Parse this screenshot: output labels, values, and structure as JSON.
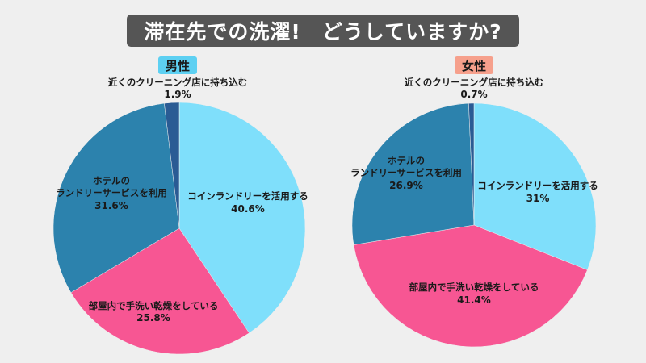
{
  "title": "滞在先での洗濯!　どうしていますか?",
  "colors": {
    "coin": "#7fdffb",
    "home": "#f75693",
    "hotel": "#2c82ad",
    "cleaning": "#2a5b94",
    "male_badge": "#5dd0f2",
    "female_badge": "#f6a08c"
  },
  "chart_data": [
    {
      "type": "pie",
      "title": "男性",
      "slices": [
        {
          "key": "coin",
          "label": "コインランドリーを活用する",
          "value": 40.6,
          "display": "40.6%"
        },
        {
          "key": "home",
          "label": "部屋内で手洗い乾燥をしている",
          "value": 25.8,
          "display": "25.8%"
        },
        {
          "key": "hotel",
          "label_lines": [
            "ホテルの",
            "ランドリーサービスを利用"
          ],
          "value": 31.6,
          "display": "31.6%"
        },
        {
          "key": "cleaning",
          "label": "近くのクリーニング店に持ち込む",
          "value": 1.9,
          "display": "1.9%"
        }
      ]
    },
    {
      "type": "pie",
      "title": "女性",
      "slices": [
        {
          "key": "coin",
          "label": "コインランドリーを活用する",
          "value": 31,
          "display": "31%"
        },
        {
          "key": "home",
          "label": "部屋内で手洗い乾燥をしている",
          "value": 41.4,
          "display": "41.4%"
        },
        {
          "key": "hotel",
          "label_lines": [
            "ホテルの",
            "ランドリーサービスを利用"
          ],
          "value": 26.9,
          "display": "26.9%"
        },
        {
          "key": "cleaning",
          "label": "近くのクリーニング店に持ち込む",
          "value": 0.7,
          "display": "0.7%"
        }
      ]
    }
  ]
}
